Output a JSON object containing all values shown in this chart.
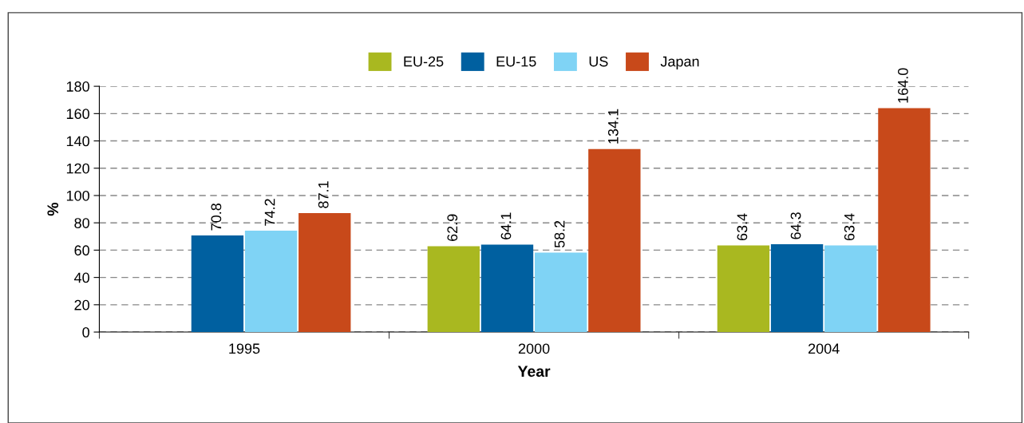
{
  "chart_data": {
    "type": "bar",
    "xlabel": "Year",
    "ylabel": "%",
    "categories": [
      "1995",
      "2000",
      "2004"
    ],
    "series": [
      {
        "name": "EU-25",
        "color": "#a9b820",
        "values": [
          null,
          62.9,
          63.4
        ],
        "value_labels": [
          null,
          "62.9",
          "63.4"
        ]
      },
      {
        "name": "EU-15",
        "color": "#0060a0",
        "values": [
          70.8,
          64.1,
          64.3
        ],
        "value_labels": [
          "70.8",
          "64.1",
          "64.3"
        ]
      },
      {
        "name": "US",
        "color": "#7fd3f5",
        "values": [
          74.2,
          58.2,
          63.4
        ],
        "value_labels": [
          "74.2",
          "58.2",
          "63.4"
        ]
      },
      {
        "name": "Japan",
        "color": "#c8491a",
        "values": [
          87.1,
          134.1,
          164.0
        ],
        "value_labels": [
          "87.1",
          "134.1",
          "164.0"
        ]
      }
    ],
    "ylim": [
      0,
      180
    ],
    "yticks": [
      0,
      20,
      40,
      60,
      80,
      100,
      120,
      140,
      160,
      180
    ],
    "grid": "y",
    "legend": "top"
  }
}
